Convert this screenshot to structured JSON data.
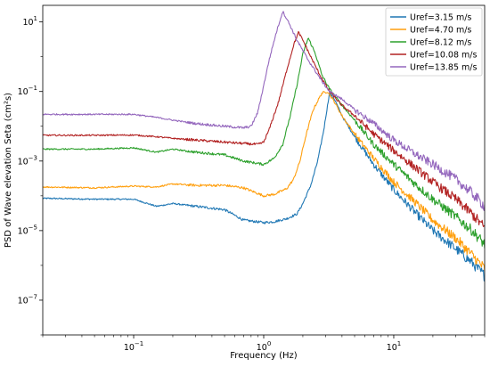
{
  "chart_data": {
    "type": "line",
    "title": "",
    "xlabel": "Frequency (Hz)",
    "ylabel": "PSD of Wave elevation Seta (cm²s)",
    "x_scale": "log",
    "y_scale": "log",
    "xlim": [
      0.02,
      50
    ],
    "ylim": [
      1e-08,
      30
    ],
    "x_ticks": [
      {
        "value": 0.1,
        "base": "10",
        "exp": "−1"
      },
      {
        "value": 1,
        "base": "10",
        "exp": "0"
      },
      {
        "value": 10,
        "base": "10",
        "exp": "1"
      }
    ],
    "y_ticks": [
      {
        "value": 1e-07,
        "base": "10",
        "exp": "−7"
      },
      {
        "value": 1e-05,
        "base": "10",
        "exp": "−5"
      },
      {
        "value": 0.001,
        "base": "10",
        "exp": "−3"
      },
      {
        "value": 0.1,
        "base": "10",
        "exp": "−1"
      },
      {
        "value": 10,
        "base": "10",
        "exp": "1"
      }
    ],
    "grid": false,
    "legend_position": "top-right",
    "series": [
      {
        "name": "Uref=3.15 m/s",
        "color": "#1f77b4",
        "points": [
          [
            0.02,
            8.5e-05
          ],
          [
            0.05,
            8e-05
          ],
          [
            0.1,
            8e-05
          ],
          [
            0.15,
            5e-05
          ],
          [
            0.2,
            6e-05
          ],
          [
            0.3,
            5e-05
          ],
          [
            0.5,
            4e-05
          ],
          [
            0.7,
            2e-05
          ],
          [
            1.0,
            1.7e-05
          ],
          [
            1.2,
            1.8e-05
          ],
          [
            1.5,
            2.2e-05
          ],
          [
            1.8,
            3e-05
          ],
          [
            2.0,
            6e-05
          ],
          [
            2.3,
            0.0002
          ],
          [
            2.6,
            0.001
          ],
          [
            2.9,
            0.008
          ],
          [
            3.2,
            0.09
          ],
          [
            3.5,
            0.06
          ],
          [
            4,
            0.02
          ],
          [
            5,
            0.005
          ],
          [
            7,
            0.0008
          ],
          [
            10,
            0.00015
          ],
          [
            15,
            3e-05
          ],
          [
            20,
            1e-05
          ],
          [
            30,
            3e-06
          ],
          [
            40,
            1.2e-06
          ],
          [
            50,
            5e-07
          ]
        ]
      },
      {
        "name": "Uref=4.70 m/s",
        "color": "#ff9f0e",
        "points": [
          [
            0.02,
            0.00018
          ],
          [
            0.05,
            0.00017
          ],
          [
            0.1,
            0.00019
          ],
          [
            0.15,
            0.00018
          ],
          [
            0.2,
            0.00022
          ],
          [
            0.3,
            0.0002
          ],
          [
            0.5,
            0.0002
          ],
          [
            0.7,
            0.00017
          ],
          [
            1.0,
            0.0001
          ],
          [
            1.2,
            0.00011
          ],
          [
            1.5,
            0.00016
          ],
          [
            1.7,
            0.0003
          ],
          [
            1.9,
            0.001
          ],
          [
            2.1,
            0.005
          ],
          [
            2.4,
            0.03
          ],
          [
            2.8,
            0.09
          ],
          [
            3.1,
            0.1
          ],
          [
            3.5,
            0.05
          ],
          [
            4,
            0.02
          ],
          [
            5,
            0.006
          ],
          [
            7,
            0.0012
          ],
          [
            10,
            0.00025
          ],
          [
            15,
            6e-05
          ],
          [
            20,
            2e-05
          ],
          [
            30,
            6e-06
          ],
          [
            40,
            2e-06
          ],
          [
            50,
            8e-07
          ]
        ]
      },
      {
        "name": "Uref=8.12 m/s",
        "color": "#2ca02c",
        "points": [
          [
            0.02,
            0.0022
          ],
          [
            0.05,
            0.0022
          ],
          [
            0.1,
            0.0024
          ],
          [
            0.15,
            0.0018
          ],
          [
            0.2,
            0.0022
          ],
          [
            0.3,
            0.0018
          ],
          [
            0.5,
            0.0015
          ],
          [
            0.7,
            0.001
          ],
          [
            1.0,
            0.0008
          ],
          [
            1.2,
            0.0012
          ],
          [
            1.4,
            0.003
          ],
          [
            1.6,
            0.02
          ],
          [
            1.8,
            0.15
          ],
          [
            2.0,
            1.2
          ],
          [
            2.2,
            3.5
          ],
          [
            2.5,
            1.2
          ],
          [
            2.8,
            0.3
          ],
          [
            3.2,
            0.12
          ],
          [
            4,
            0.04
          ],
          [
            5,
            0.015
          ],
          [
            7,
            0.003
          ],
          [
            10,
            0.0008
          ],
          [
            15,
            0.0002
          ],
          [
            20,
            8e-05
          ],
          [
            30,
            2.5e-05
          ],
          [
            40,
            1e-05
          ],
          [
            50,
            4e-06
          ]
        ]
      },
      {
        "name": "Uref=10.08 m/s",
        "color": "#b22222",
        "points": [
          [
            0.02,
            0.0055
          ],
          [
            0.05,
            0.0055
          ],
          [
            0.1,
            0.0056
          ],
          [
            0.15,
            0.005
          ],
          [
            0.2,
            0.0045
          ],
          [
            0.3,
            0.004
          ],
          [
            0.5,
            0.0035
          ],
          [
            0.7,
            0.0032
          ],
          [
            0.9,
            0.003
          ],
          [
            1.0,
            0.0035
          ],
          [
            1.1,
            0.008
          ],
          [
            1.3,
            0.05
          ],
          [
            1.5,
            0.4
          ],
          [
            1.7,
            2.2
          ],
          [
            1.85,
            5
          ],
          [
            2.0,
            3
          ],
          [
            2.3,
            1
          ],
          [
            2.7,
            0.3
          ],
          [
            3.2,
            0.1
          ],
          [
            4,
            0.04
          ],
          [
            5,
            0.02
          ],
          [
            7,
            0.006
          ],
          [
            10,
            0.002
          ],
          [
            15,
            0.0006
          ],
          [
            20,
            0.00025
          ],
          [
            30,
            8e-05
          ],
          [
            40,
            3e-05
          ],
          [
            50,
            1.2e-05
          ]
        ]
      },
      {
        "name": "Uref=13.85 m/s",
        "color": "#9467bd",
        "points": [
          [
            0.02,
            0.022
          ],
          [
            0.05,
            0.022
          ],
          [
            0.1,
            0.022
          ],
          [
            0.15,
            0.018
          ],
          [
            0.2,
            0.015
          ],
          [
            0.3,
            0.012
          ],
          [
            0.5,
            0.01
          ],
          [
            0.7,
            0.009
          ],
          [
            0.8,
            0.01
          ],
          [
            0.9,
            0.025
          ],
          [
            1.0,
            0.15
          ],
          [
            1.1,
            0.8
          ],
          [
            1.25,
            5
          ],
          [
            1.4,
            20
          ],
          [
            1.55,
            10
          ],
          [
            1.8,
            3
          ],
          [
            2.2,
            0.8
          ],
          [
            2.8,
            0.2
          ],
          [
            3.2,
            0.1
          ],
          [
            4,
            0.06
          ],
          [
            5,
            0.03
          ],
          [
            7,
            0.012
          ],
          [
            10,
            0.004
          ],
          [
            15,
            0.0015
          ],
          [
            20,
            0.0008
          ],
          [
            30,
            0.0003
          ],
          [
            40,
            0.00012
          ],
          [
            50,
            5e-05
          ]
        ]
      }
    ]
  }
}
